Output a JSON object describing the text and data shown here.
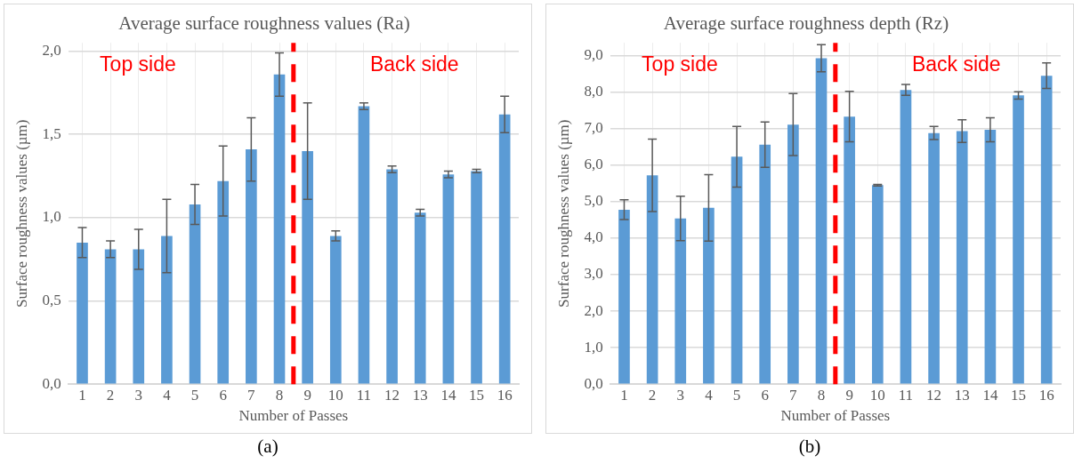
{
  "chart_data": [
    {
      "type": "bar",
      "title": "Average surface roughness values (Ra)",
      "xlabel": "Number of Passes",
      "ylabel": "Surface roughness values (µm)",
      "x": [
        1,
        2,
        3,
        4,
        5,
        6,
        7,
        8,
        9,
        10,
        11,
        12,
        13,
        14,
        15,
        16
      ],
      "values": [
        0.85,
        0.81,
        0.81,
        0.89,
        1.08,
        1.22,
        1.41,
        1.86,
        1.4,
        0.89,
        1.67,
        1.29,
        1.03,
        1.26,
        1.28,
        1.62
      ],
      "errors": [
        0.09,
        0.05,
        0.12,
        0.22,
        0.12,
        0.21,
        0.19,
        0.13,
        0.29,
        0.03,
        0.02,
        0.02,
        0.02,
        0.02,
        0.01,
        0.11
      ],
      "color": "#5b9bd5",
      "xlim": [
        0.5,
        16.5
      ],
      "xticks": [
        1,
        2,
        3,
        4,
        5,
        6,
        7,
        8,
        9,
        10,
        11,
        12,
        13,
        14,
        15,
        16
      ],
      "ylim": [
        0,
        2.05
      ],
      "yticks": [
        {
          "value": 0,
          "label": "0,0"
        },
        {
          "value": 0.5,
          "label": "0,5"
        },
        {
          "value": 1,
          "label": "1,0"
        },
        {
          "value": 1.5,
          "label": "1,5"
        },
        {
          "value": 2,
          "label": "2,0"
        }
      ],
      "grid": true,
      "ref_lines": [
        {
          "axis": "x",
          "value": 8.5,
          "color": "#ff0000",
          "line_style": "dashed"
        }
      ],
      "annotations": [
        "Top side",
        "Back side",
        "(a)"
      ]
    },
    {
      "type": "bar",
      "title": "Average surface roughness depth (Rz)",
      "xlabel": "Number of Passes",
      "ylabel": "Surface roughness values (µm)",
      "x": [
        1,
        2,
        3,
        4,
        5,
        6,
        7,
        8,
        9,
        10,
        11,
        12,
        13,
        14,
        15,
        16
      ],
      "values": [
        4.78,
        5.72,
        4.54,
        4.83,
        6.23,
        6.56,
        7.11,
        8.93,
        7.33,
        5.45,
        8.06,
        6.88,
        6.93,
        6.97,
        7.91,
        8.45
      ],
      "errors": [
        0.27,
        0.99,
        0.61,
        0.91,
        0.83,
        0.62,
        0.85,
        0.37,
        0.69,
        0.02,
        0.15,
        0.18,
        0.31,
        0.33,
        0.1,
        0.35
      ],
      "color": "#5b9bd5",
      "xlim": [
        0.5,
        16.5
      ],
      "xticks": [
        1,
        2,
        3,
        4,
        5,
        6,
        7,
        8,
        9,
        10,
        11,
        12,
        13,
        14,
        15,
        16
      ],
      "ylim": [
        0,
        9.35
      ],
      "yticks": [
        {
          "value": 0,
          "label": "0,0"
        },
        {
          "value": 1,
          "label": "1,0"
        },
        {
          "value": 2,
          "label": "2,0"
        },
        {
          "value": 3,
          "label": "3,0"
        },
        {
          "value": 4,
          "label": "4,0"
        },
        {
          "value": 5,
          "label": "5,0"
        },
        {
          "value": 6,
          "label": "6,0"
        },
        {
          "value": 7,
          "label": "7,0"
        },
        {
          "value": 8,
          "label": "8,0"
        },
        {
          "value": 9,
          "label": "9,0"
        }
      ],
      "grid": true,
      "ref_lines": [
        {
          "axis": "x",
          "value": 8.5,
          "color": "#ff0000",
          "line_style": "dashed"
        }
      ],
      "annotations": [
        "Top side",
        "Back side",
        "(b)"
      ]
    }
  ]
}
